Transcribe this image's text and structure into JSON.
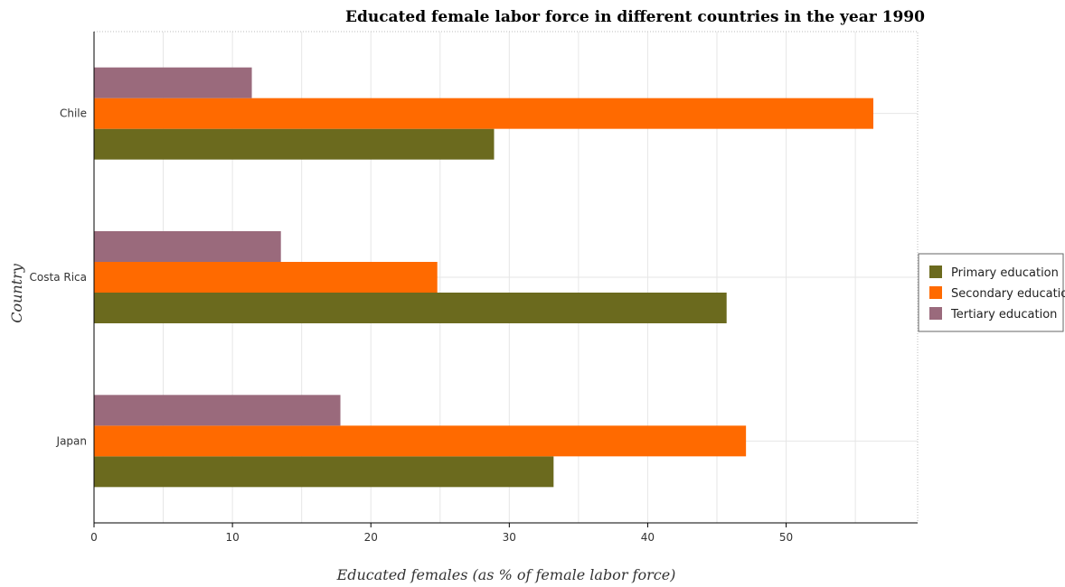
{
  "chart_data": {
    "type": "bar",
    "orientation": "horizontal",
    "title": "Educated female labor force in different countries in the year 1990",
    "xlabel": "Educated females (as % of female labor force)",
    "ylabel": "Country",
    "categories": [
      "Chile",
      "Costa Rica",
      "Japan"
    ],
    "series": [
      {
        "name": "Primary education",
        "color": "#6b6a1e",
        "values": [
          28.9,
          45.7,
          33.2
        ]
      },
      {
        "name": "Secondary education",
        "color": "#ff6a00",
        "values": [
          56.3,
          24.8,
          47.1
        ]
      },
      {
        "name": "Tertiary education",
        "color": "#9a6a7c",
        "values": [
          11.4,
          13.5,
          17.8
        ]
      }
    ],
    "xlim": [
      0,
      59.5
    ],
    "xticks": [
      0,
      10,
      20,
      30,
      40,
      50
    ],
    "xtick_labels": [
      "0",
      "10",
      "20",
      "30",
      "40",
      "50"
    ],
    "grid": true,
    "legend_position": "right"
  }
}
